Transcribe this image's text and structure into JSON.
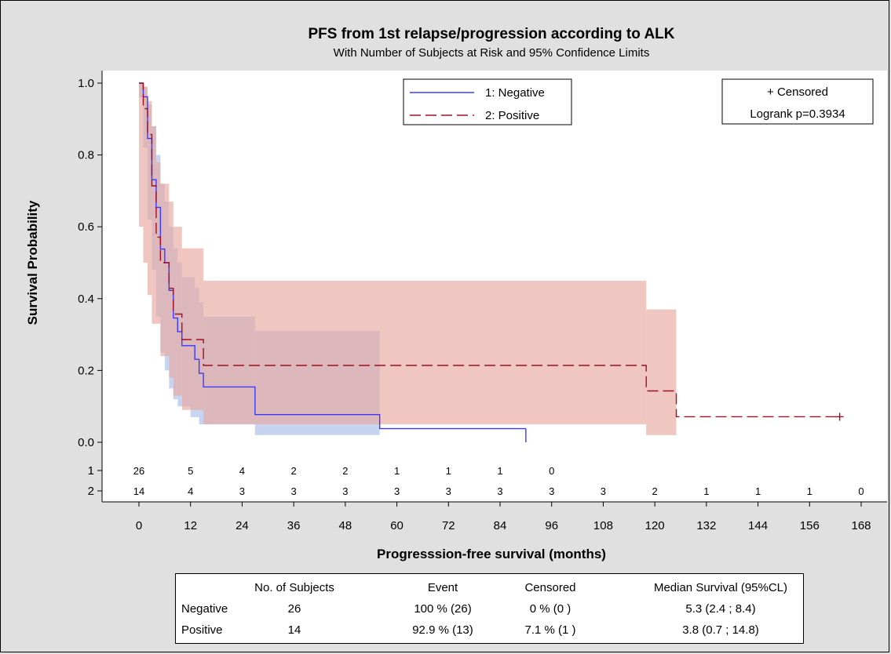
{
  "chart_data": {
    "type": "line",
    "subtype": "kaplan-meier survival",
    "title": "PFS from 1st relapse/progression according to ALK",
    "subtitle": "With Number of Subjects at Risk and 95% Confidence Limits",
    "xlabel": "Progresssion-free survival (months)",
    "ylabel": "Survival Probability",
    "xlim": [
      0,
      168
    ],
    "ylim": [
      0,
      1
    ],
    "xticks": [
      0,
      12,
      24,
      36,
      48,
      60,
      72,
      84,
      96,
      108,
      120,
      132,
      144,
      156,
      168
    ],
    "yticks": [
      0.0,
      0.2,
      0.4,
      0.6,
      0.8,
      1.0
    ],
    "ytick_labels": [
      "0.0",
      "0.2",
      "0.4",
      "0.6",
      "0.8",
      "1.0"
    ],
    "grid": false,
    "legend_position": "top-center",
    "series": [
      {
        "name": "1: Negative",
        "color": "#3a3aff",
        "line_style": "solid",
        "band_color": "#a9bde8",
        "steps": [
          [
            0,
            1.0
          ],
          [
            1,
            0.962
          ],
          [
            2,
            0.846
          ],
          [
            3,
            0.731
          ],
          [
            4,
            0.654
          ],
          [
            5,
            0.538
          ],
          [
            6,
            0.5
          ],
          [
            7,
            0.423
          ],
          [
            8,
            0.346
          ],
          [
            9,
            0.308
          ],
          [
            10,
            0.269
          ],
          [
            13,
            0.231
          ],
          [
            14,
            0.192
          ],
          [
            15,
            0.154
          ],
          [
            27,
            0.077
          ],
          [
            56,
            0.038
          ],
          [
            90,
            0.038
          ]
        ],
        "ci_lower": [
          [
            0,
            0.96
          ],
          [
            1,
            0.82
          ],
          [
            2,
            0.62
          ],
          [
            3,
            0.48
          ],
          [
            4,
            0.35
          ],
          [
            5,
            0.25
          ],
          [
            6,
            0.2
          ],
          [
            7,
            0.15
          ],
          [
            8,
            0.12
          ],
          [
            9,
            0.1
          ],
          [
            12,
            0.07
          ],
          [
            14,
            0.05
          ],
          [
            27,
            0.02
          ],
          [
            56,
            0.02
          ]
        ],
        "ci_upper": [
          [
            0,
            1.0
          ],
          [
            1,
            0.99
          ],
          [
            2,
            0.94
          ],
          [
            3,
            0.88
          ],
          [
            4,
            0.8
          ],
          [
            5,
            0.72
          ],
          [
            6,
            0.67
          ],
          [
            7,
            0.6
          ],
          [
            8,
            0.54
          ],
          [
            9,
            0.5
          ],
          [
            10,
            0.46
          ],
          [
            13,
            0.43
          ],
          [
            14,
            0.39
          ],
          [
            15,
            0.35
          ],
          [
            27,
            0.31
          ],
          [
            56,
            0.21
          ]
        ],
        "censored": [],
        "end_x": 90
      },
      {
        "name": "2: Positive",
        "color": "#a01020",
        "line_style": "dashed",
        "band_color": "#e8a8a0",
        "steps": [
          [
            0,
            1.0
          ],
          [
            1,
            0.929
          ],
          [
            2,
            0.857
          ],
          [
            3,
            0.714
          ],
          [
            4,
            0.571
          ],
          [
            5,
            0.5
          ],
          [
            7,
            0.429
          ],
          [
            8,
            0.357
          ],
          [
            10,
            0.286
          ],
          [
            15,
            0.214
          ],
          [
            118,
            0.143
          ],
          [
            125,
            0.071
          ],
          [
            163,
            0.071
          ]
        ],
        "ci_lower": [
          [
            0,
            0.6
          ],
          [
            1,
            0.5
          ],
          [
            2,
            0.41
          ],
          [
            3,
            0.33
          ],
          [
            5,
            0.24
          ],
          [
            7,
            0.18
          ],
          [
            8,
            0.13
          ],
          [
            10,
            0.09
          ],
          [
            15,
            0.05
          ],
          [
            118,
            0.02
          ],
          [
            125,
            0.02
          ]
        ],
        "ci_upper": [
          [
            0,
            1.0
          ],
          [
            1,
            0.99
          ],
          [
            2,
            0.95
          ],
          [
            3,
            0.88
          ],
          [
            4,
            0.78
          ],
          [
            5,
            0.72
          ],
          [
            7,
            0.67
          ],
          [
            8,
            0.6
          ],
          [
            10,
            0.54
          ],
          [
            15,
            0.45
          ],
          [
            118,
            0.37
          ],
          [
            125,
            0.37
          ]
        ],
        "censored": [
          163
        ],
        "end_x": 163
      }
    ],
    "at_risk": {
      "x": [
        0,
        12,
        24,
        36,
        48,
        60,
        72,
        84,
        96,
        108,
        120,
        132,
        144,
        156,
        168
      ],
      "rows": [
        {
          "label": "1",
          "values": [
            "26",
            "5",
            "4",
            "2",
            "2",
            "1",
            "1",
            "1",
            "0"
          ]
        },
        {
          "label": "2",
          "values": [
            "14",
            "4",
            "3",
            "3",
            "3",
            "3",
            "3",
            "3",
            "3",
            "3",
            "2",
            "1",
            "1",
            "1",
            "0"
          ]
        }
      ]
    },
    "inset": {
      "line1": "+ Censored",
      "line2": "Logrank p=0.3934"
    }
  },
  "summary_table": {
    "headers": [
      "",
      "No. of Subjects",
      "Event",
      "Censored",
      "Median Survival (95%CL)"
    ],
    "rows": [
      [
        "Negative",
        "26",
        "100 % (26)",
        "0 % (0 )",
        "5.3 (2.4 ; 8.4)"
      ],
      [
        "Positive",
        "14",
        "92.9 % (13)",
        "7.1 % (1 )",
        "3.8 (0.7 ; 14.8)"
      ]
    ]
  }
}
